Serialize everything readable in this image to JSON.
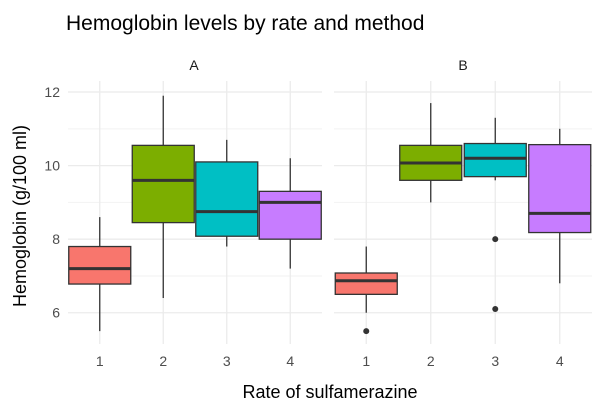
{
  "chart_data": {
    "type": "boxplot",
    "title": "Hemoglobin levels by rate and method",
    "xlabel": "Rate of sulfamerazine",
    "ylabel": "Hemoglobin (g/100 ml)",
    "categories": [
      "1",
      "2",
      "3",
      "4"
    ],
    "yticks": [
      "6",
      "8",
      "10",
      "12"
    ],
    "ylim": [
      5.15,
      12.3
    ],
    "grid": true,
    "legend": "none",
    "colors": [
      "#F8766D",
      "#7CAE00",
      "#00BFC4",
      "#C77CFF"
    ],
    "panels": [
      {
        "name": "A",
        "boxes": [
          {
            "category": "1",
            "min": 5.5,
            "q1": 6.78,
            "median": 7.2,
            "q3": 7.8,
            "max": 8.6,
            "outliers": []
          },
          {
            "category": "2",
            "min": 6.4,
            "q1": 8.45,
            "median": 9.6,
            "q3": 10.55,
            "max": 11.9,
            "outliers": []
          },
          {
            "category": "3",
            "min": 7.8,
            "q1": 8.08,
            "median": 8.75,
            "q3": 10.1,
            "max": 10.7,
            "outliers": []
          },
          {
            "category": "4",
            "min": 7.2,
            "q1": 8.0,
            "median": 9.0,
            "q3": 9.3,
            "max": 10.2,
            "outliers": []
          }
        ]
      },
      {
        "name": "B",
        "boxes": [
          {
            "category": "1",
            "min": 6.0,
            "q1": 6.5,
            "median": 6.87,
            "q3": 7.08,
            "max": 7.8,
            "outliers": [
              5.5
            ]
          },
          {
            "category": "2",
            "min": 9.0,
            "q1": 9.6,
            "median": 10.07,
            "q3": 10.55,
            "max": 11.7,
            "outliers": []
          },
          {
            "category": "3",
            "min": 9.6,
            "q1": 9.7,
            "median": 10.2,
            "q3": 10.6,
            "max": 11.3,
            "outliers": [
              8.0,
              6.1
            ]
          },
          {
            "category": "4",
            "min": 6.8,
            "q1": 8.18,
            "median": 8.7,
            "q3": 10.57,
            "max": 11.0,
            "outliers": []
          }
        ]
      }
    ]
  }
}
